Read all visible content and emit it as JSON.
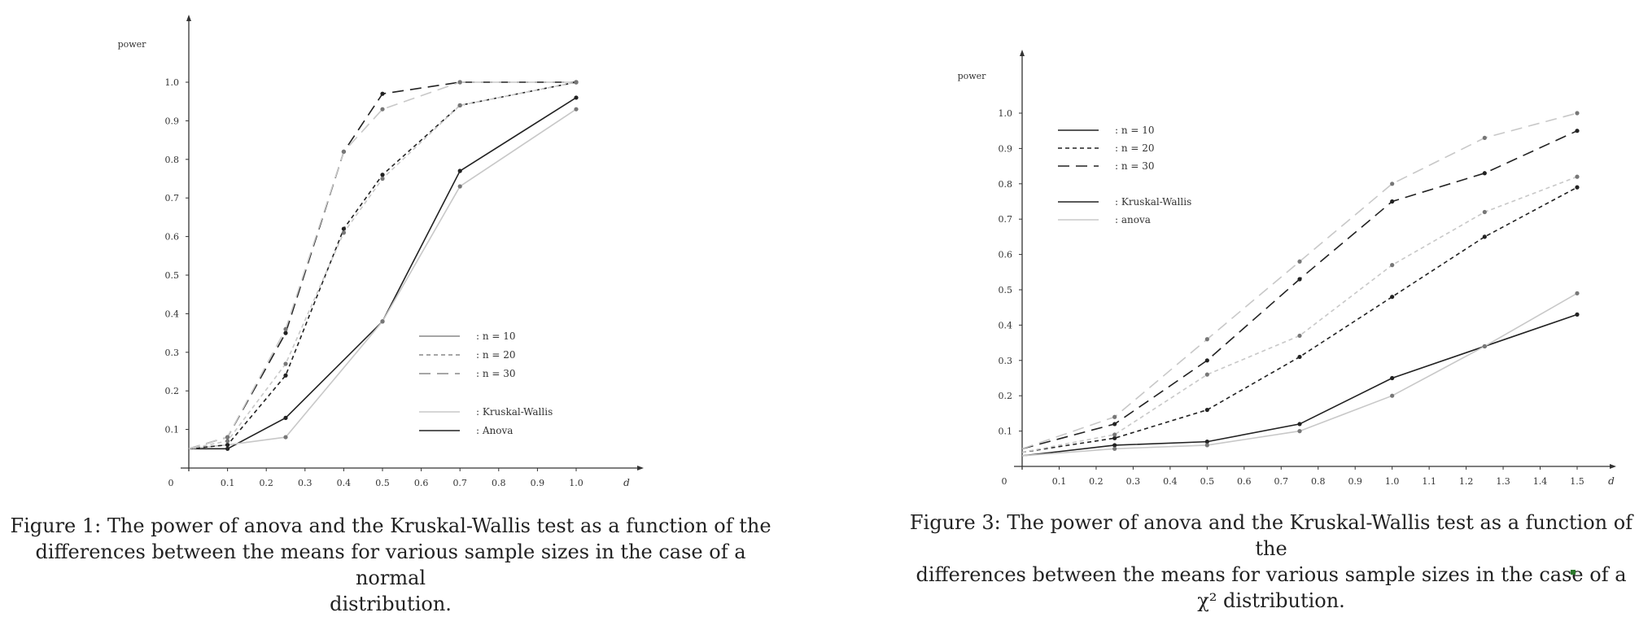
{
  "figures": [
    {
      "id": "fig1",
      "caption": {
        "lines": [
          "Figure 1: The power of anova and the Kruskal-Wallis test as a function of the",
          "differences between the means for various sample sizes in the case of a normal",
          "distribution."
        ]
      }
    },
    {
      "id": "fig3",
      "caption": {
        "lines": [
          "Figure 3: The power of anova and the Kruskal-Wallis test as a function of the",
          "differences between the means for various sample sizes in the case of a",
          "χ² distribution."
        ]
      }
    }
  ],
  "chart_data": [
    {
      "type": "line",
      "ylabel": "power",
      "xlabel": "d",
      "origin_label": "0",
      "xlim": [
        0,
        1.0
      ],
      "ylim": [
        0,
        1.0
      ],
      "xticks": [
        0.1,
        0.2,
        0.3,
        0.4,
        0.5,
        0.6,
        0.7,
        0.8,
        0.9,
        1.0
      ],
      "xtick_labels": [
        "0.1",
        "0.2",
        "0.3",
        "0.4",
        "0.5",
        "0.6",
        "0.7",
        "0.8",
        "0.9",
        "1.0"
      ],
      "yticks": [
        0.1,
        0.2,
        0.3,
        0.4,
        0.5,
        0.6,
        0.7,
        0.8,
        0.9,
        1.0
      ],
      "ytick_labels": [
        "0.1",
        "0.2",
        "0.3",
        "0.4",
        "0.5",
        "0.6",
        "0.7",
        "0.8",
        "0.9",
        "1.0"
      ],
      "grid": false,
      "legend_position": "bottom-right",
      "legend": [
        {
          "label": ": n = 10",
          "style": "solid",
          "color": "#888888"
        },
        {
          "label": ": n = 20",
          "style": "dotted",
          "color": "#888888"
        },
        {
          "label": ": n = 30",
          "style": "dashed",
          "color": "#888888"
        },
        {
          "label": ": Kruskal-Wallis",
          "style": "solid",
          "color": "#c8c8c8"
        },
        {
          "label": ": Anova",
          "style": "solid",
          "color": "#222222"
        }
      ],
      "series": [
        {
          "test": "Anova",
          "n": 10,
          "style": "solid",
          "color": "#222222",
          "x": [
            0,
            0.1,
            0.25,
            0.5,
            0.7,
            1.0
          ],
          "y": [
            0.05,
            0.05,
            0.13,
            0.38,
            0.77,
            0.96
          ]
        },
        {
          "test": "Kruskal-Wallis",
          "n": 10,
          "style": "solid",
          "color": "#c8c8c8",
          "x": [
            0,
            0.1,
            0.25,
            0.5,
            0.7,
            1.0
          ],
          "y": [
            0.05,
            0.06,
            0.08,
            0.38,
            0.73,
            0.93
          ]
        },
        {
          "test": "Anova",
          "n": 20,
          "style": "dotted",
          "color": "#222222",
          "x": [
            0,
            0.1,
            0.25,
            0.4,
            0.5,
            0.7,
            1.0
          ],
          "y": [
            0.05,
            0.06,
            0.24,
            0.62,
            0.76,
            0.94,
            1.0
          ]
        },
        {
          "test": "Kruskal-Wallis",
          "n": 20,
          "style": "dotted",
          "color": "#c8c8c8",
          "x": [
            0,
            0.1,
            0.25,
            0.4,
            0.5,
            0.7,
            1.0
          ],
          "y": [
            0.05,
            0.07,
            0.27,
            0.61,
            0.75,
            0.94,
            1.0
          ]
        },
        {
          "test": "Anova",
          "n": 30,
          "style": "dashed",
          "color": "#222222",
          "x": [
            0,
            0.1,
            0.25,
            0.4,
            0.5,
            0.7,
            1.0
          ],
          "y": [
            0.05,
            0.08,
            0.35,
            0.82,
            0.97,
            1.0,
            1.0
          ]
        },
        {
          "test": "Kruskal-Wallis",
          "n": 30,
          "style": "dashed",
          "color": "#c8c8c8",
          "x": [
            0,
            0.1,
            0.25,
            0.4,
            0.5,
            0.7,
            1.0
          ],
          "y": [
            0.05,
            0.08,
            0.36,
            0.82,
            0.93,
            1.0,
            1.0
          ]
        }
      ]
    },
    {
      "type": "line",
      "ylabel": "power",
      "xlabel": "d",
      "origin_label": "0",
      "xlim": [
        0,
        1.5
      ],
      "ylim": [
        0,
        1.0
      ],
      "xticks": [
        0.1,
        0.2,
        0.3,
        0.4,
        0.5,
        0.6,
        0.7,
        0.8,
        0.9,
        1.0,
        1.1,
        1.2,
        1.3,
        1.4,
        1.5
      ],
      "xtick_labels": [
        "0.1",
        "0.2",
        "0.3",
        "0.4",
        "0.5",
        "0.6",
        "0.7",
        "0.8",
        "0.9",
        "1.0",
        "1.1",
        "1.2",
        "1.3",
        "1.4",
        "1.5"
      ],
      "yticks": [
        0.1,
        0.2,
        0.3,
        0.4,
        0.5,
        0.6,
        0.7,
        0.8,
        0.9,
        1.0
      ],
      "ytick_labels": [
        "0.1",
        "0.2",
        "0.3",
        "0.4",
        "0.5",
        "0.6",
        "0.7",
        "0.8",
        "0.9",
        "1.0"
      ],
      "grid": false,
      "legend_position": "top-left",
      "legend": [
        {
          "label": ": n = 10",
          "style": "solid",
          "color": "#222222"
        },
        {
          "label": ": n = 20",
          "style": "dotted",
          "color": "#222222"
        },
        {
          "label": ": n = 30",
          "style": "dashed",
          "color": "#222222"
        },
        {
          "label": ": Kruskal-Wallis",
          "style": "solid",
          "color": "#222222"
        },
        {
          "label": ": anova",
          "style": "solid",
          "color": "#c8c8c8"
        }
      ],
      "series": [
        {
          "test": "Kruskal-Wallis",
          "n": 10,
          "style": "solid",
          "color": "#222222",
          "x": [
            0,
            0.25,
            0.5,
            0.75,
            1.0,
            1.25,
            1.5
          ],
          "y": [
            0.03,
            0.06,
            0.07,
            0.12,
            0.25,
            0.34,
            0.43
          ]
        },
        {
          "test": "anova",
          "n": 10,
          "style": "solid",
          "color": "#c8c8c8",
          "x": [
            0,
            0.25,
            0.5,
            0.75,
            1.0,
            1.25,
            1.5
          ],
          "y": [
            0.03,
            0.05,
            0.06,
            0.1,
            0.2,
            0.34,
            0.49
          ]
        },
        {
          "test": "Kruskal-Wallis",
          "n": 20,
          "style": "dotted",
          "color": "#222222",
          "x": [
            0,
            0.25,
            0.5,
            0.75,
            1.0,
            1.25,
            1.5
          ],
          "y": [
            0.04,
            0.08,
            0.16,
            0.31,
            0.48,
            0.65,
            0.79
          ]
        },
        {
          "test": "anova",
          "n": 20,
          "style": "dotted",
          "color": "#c8c8c8",
          "x": [
            0,
            0.25,
            0.5,
            0.75,
            1.0,
            1.25,
            1.5
          ],
          "y": [
            0.04,
            0.09,
            0.26,
            0.37,
            0.57,
            0.72,
            0.82
          ]
        },
        {
          "test": "Kruskal-Wallis",
          "n": 30,
          "style": "dashed",
          "color": "#222222",
          "x": [
            0,
            0.25,
            0.5,
            0.75,
            1.0,
            1.25,
            1.5
          ],
          "y": [
            0.05,
            0.12,
            0.3,
            0.53,
            0.75,
            0.83,
            0.95
          ]
        },
        {
          "test": "anova",
          "n": 30,
          "style": "dashed",
          "color": "#c8c8c8",
          "x": [
            0,
            0.25,
            0.5,
            0.75,
            1.0,
            1.25,
            1.5
          ],
          "y": [
            0.05,
            0.14,
            0.36,
            0.58,
            0.8,
            0.93,
            1.0
          ]
        }
      ]
    }
  ]
}
